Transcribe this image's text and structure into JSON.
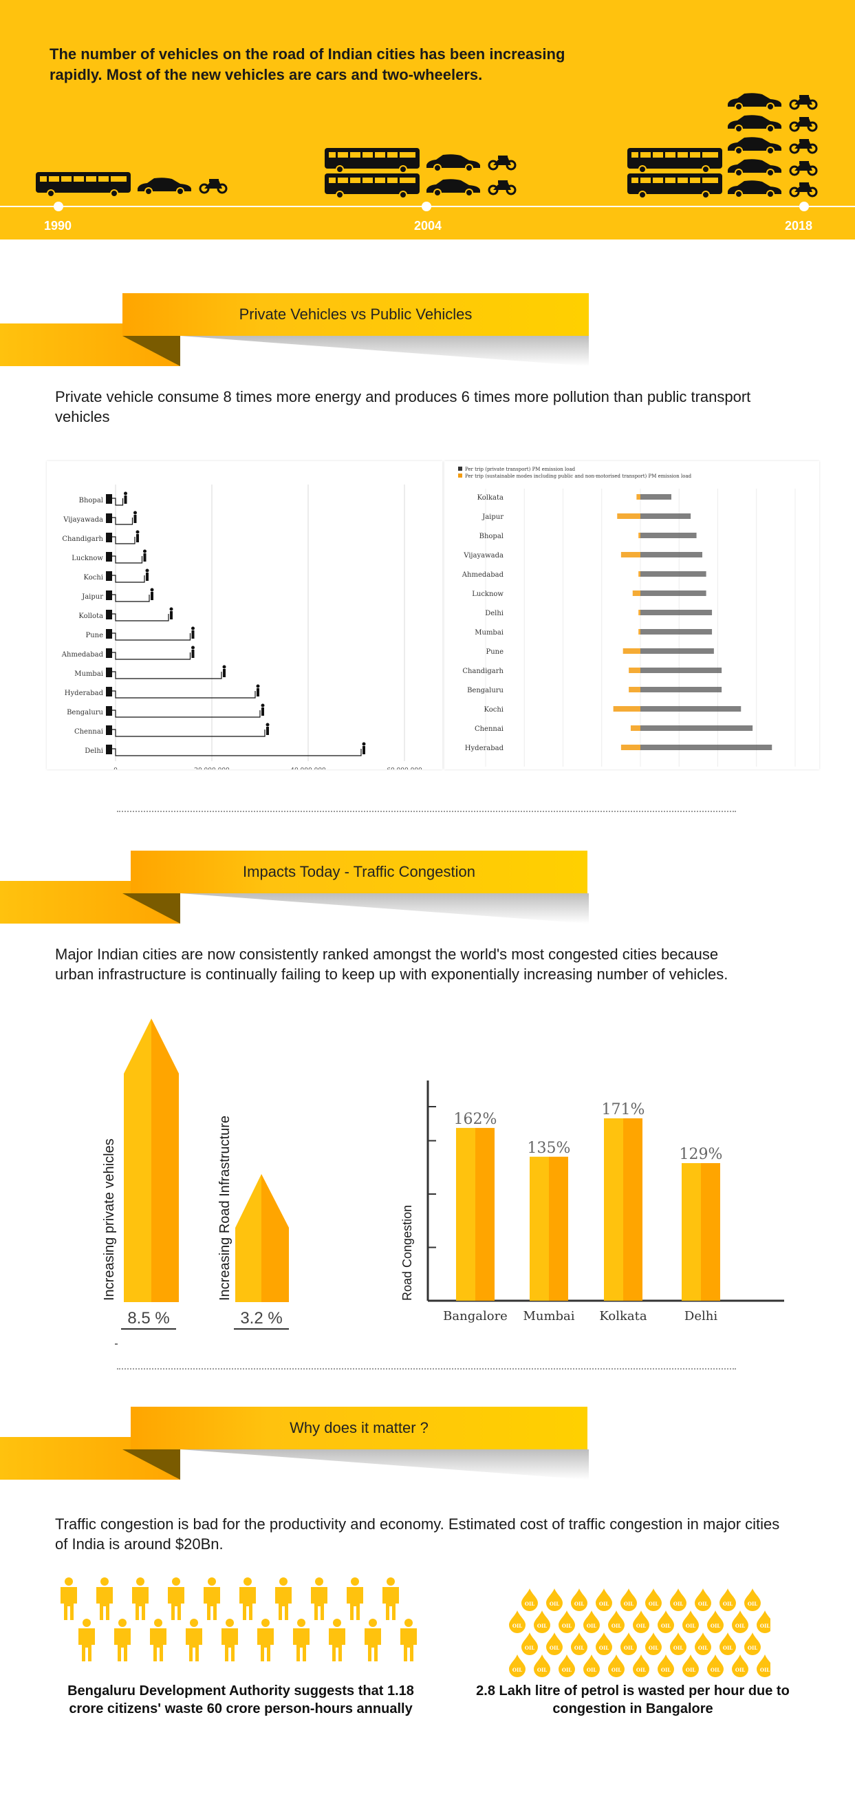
{
  "hero": {
    "title": "The number of vehicles on the road of Indian cities has been increasing rapidly. Most of the new vehicles are cars and two-wheelers.",
    "years": [
      "1990",
      "2004",
      "2018"
    ]
  },
  "section1": {
    "header": "Private Vehicles vs Public Vehicles",
    "text": "Private vehicle consume 8 times more energy and produces 6 times more pollution than public transport vehicles"
  },
  "chart_data": [
    {
      "type": "bar",
      "orientation": "horizontal",
      "categories": [
        "Bhopal",
        "Vijayawada",
        "Chandigarh",
        "Lucknow",
        "Kochi",
        "Jaipur",
        "Kollota",
        "Pune",
        "Ahmedabad",
        "Mumbai",
        "Hyderabad",
        "Bengaluru",
        "Chennai",
        "Delhi"
      ],
      "values": [
        1500000,
        3500000,
        4000000,
        5500000,
        6000000,
        7000000,
        11000000,
        15500000,
        15500000,
        22000000,
        29000000,
        30000000,
        31000000,
        51000000
      ],
      "xticks": [
        "0",
        "20,000,000",
        "40,000,000",
        "60,000,000"
      ],
      "xlim": [
        0,
        60000000
      ],
      "grid": true
    },
    {
      "type": "bar",
      "orientation": "horizontal-diverging",
      "legend": [
        "Per trip (private transport) PM emission load",
        "Per trip (sustainable modes including public and non-motorised transport) PM emission load"
      ],
      "legend_position": "top-left",
      "categories": [
        "Kolkata",
        "Jaipur",
        "Bhopal",
        "Vijayawada",
        "Ahmedabad",
        "Lucknow",
        "Delhi",
        "Mumbai",
        "Pune",
        "Chandigarh",
        "Bengaluru",
        "Kochi",
        "Chennai",
        "Hyderabad"
      ],
      "series": [
        {
          "name": "Per trip (private transport) PM emission load",
          "values": [
            16,
            26,
            29,
            32,
            34,
            34,
            37,
            37,
            38,
            42,
            42,
            52,
            58,
            68
          ]
        },
        {
          "name": "Per trip (sustainable modes including public and non-motorised transport) PM emission load",
          "values": [
            -2,
            -12,
            -1,
            -10,
            -1,
            -4,
            -1,
            -1,
            -9,
            -6,
            -6,
            -14,
            -5,
            -10
          ]
        }
      ],
      "xticks": [
        "80",
        "60",
        "40",
        "20",
        "0",
        "20",
        "40",
        "60",
        "80"
      ],
      "xlim": [
        -80,
        80
      ]
    },
    {
      "type": "bar",
      "categories": [
        "Bangalore",
        "Mumbai",
        "Kolkata",
        "Delhi"
      ],
      "values": [
        162,
        135,
        171,
        129
      ],
      "labels": [
        "162%",
        "135%",
        "171%",
        "129%"
      ],
      "ylabel": "Road Congestion",
      "ylim": [
        0,
        200
      ]
    }
  ],
  "section2": {
    "header": "Impacts Today - Traffic Congestion",
    "text": "Major Indian cities are now consistently ranked amongst the world's most congested cities because urban infrastructure is continually failing to keep up with exponentially increasing number of vehicles.",
    "arrow1_label": "Increasing private vehicles",
    "arrow1_value": "8.5 %",
    "arrow1_fraction": 8.5,
    "arrow2_label": "Increasing Road Infrastructure",
    "arrow2_value": "3.2 %",
    "arrow2_fraction": 3.2,
    "bar_ylabel": "Road Congestion"
  },
  "section3": {
    "header": "Why does it matter ?",
    "text": "Traffic congestion is bad for the productivity and economy. Estimated cost of traffic congestion in major cities of India is around $20Bn.",
    "caption_left": "Bengaluru Development Authority suggests that 1.18 crore citizens' waste 60 crore person-hours annually",
    "caption_right": "2.8 Lakh litre of petrol is wasted per hour due to congestion in Bangalore",
    "oil_label": "OIL"
  },
  "colors": {
    "yellow": "#ffc20e",
    "orange": "#ffa500",
    "dark": "#111111"
  }
}
